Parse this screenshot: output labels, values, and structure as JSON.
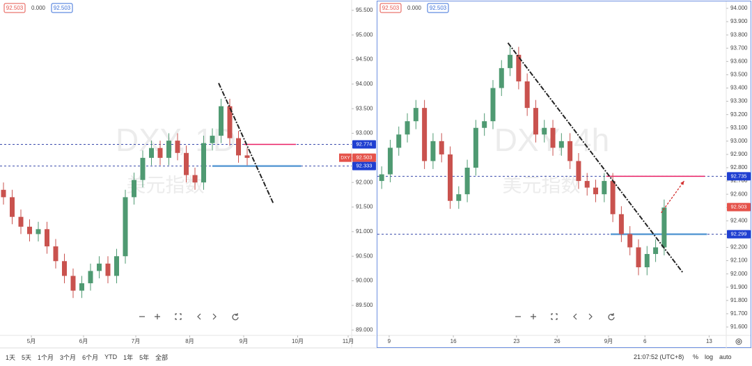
{
  "chart_data": [
    {
      "type": "candlestick",
      "header": [
        "92.503",
        "0.000",
        "92.503"
      ],
      "watermark": [
        "DXY, 1D",
        "美元指数"
      ],
      "up_color": "#4f9a72",
      "down_color": "#c9524e",
      "x": [
        2,
        7,
        12,
        17,
        22,
        27,
        32,
        37,
        42,
        47,
        52,
        57,
        62,
        67,
        72,
        77,
        82,
        87,
        92,
        97,
        102,
        107,
        112,
        117,
        122,
        127,
        132,
        137,
        142
      ],
      "open": [
        91.85,
        91.7,
        91.3,
        91.1,
        90.95,
        91.05,
        90.7,
        90.4,
        90.1,
        89.8,
        89.95,
        90.2,
        90.35,
        90.1,
        90.5,
        91.7,
        92.05,
        92.5,
        92.7,
        92.5,
        92.85,
        92.6,
        92.15,
        92.0,
        92.8,
        92.95,
        93.55,
        92.9,
        92.55
      ],
      "high": [
        92.0,
        91.85,
        91.45,
        91.25,
        91.2,
        91.2,
        90.85,
        90.55,
        90.25,
        90.1,
        90.35,
        90.5,
        90.5,
        90.65,
        91.85,
        92.2,
        92.65,
        92.85,
        92.85,
        93.0,
        93.0,
        92.75,
        92.3,
        92.95,
        93.1,
        93.7,
        93.7,
        93.05,
        92.7
      ],
      "low": [
        91.55,
        91.15,
        90.95,
        90.8,
        90.8,
        90.55,
        90.25,
        89.95,
        89.65,
        89.65,
        89.8,
        90.05,
        89.95,
        89.95,
        90.35,
        91.55,
        91.9,
        92.35,
        92.35,
        92.35,
        92.45,
        92.0,
        91.85,
        91.85,
        92.65,
        92.8,
        92.75,
        92.4,
        92.35
      ],
      "close": [
        91.7,
        91.3,
        91.1,
        90.95,
        91.05,
        90.7,
        90.4,
        90.1,
        89.8,
        89.95,
        90.2,
        90.35,
        90.1,
        90.5,
        91.7,
        92.05,
        92.5,
        92.7,
        92.5,
        92.85,
        92.6,
        92.15,
        92.0,
        92.8,
        92.95,
        93.55,
        92.9,
        92.55,
        92.5
      ],
      "xlim": [
        0,
        202
      ],
      "ylim": [
        88.89,
        95.71
      ],
      "xticks": [
        {
          "value": 18,
          "label": "5月"
        },
        {
          "value": 48,
          "label": "6月"
        },
        {
          "value": 78,
          "label": "7月"
        },
        {
          "value": 109,
          "label": "8月"
        },
        {
          "value": 140,
          "label": "9月"
        },
        {
          "value": 171,
          "label": "10月"
        },
        {
          "value": 200,
          "label": "11月"
        }
      ],
      "yticks": [
        {
          "value": 89,
          "label": "89.000"
        },
        {
          "value": 89.5,
          "label": "89.500"
        },
        {
          "value": 90,
          "label": "90.000"
        },
        {
          "value": 90.5,
          "label": "90.500"
        },
        {
          "value": 91,
          "label": "91.000"
        },
        {
          "value": 91.5,
          "label": "91.500"
        },
        {
          "value": 92,
          "label": "92.000"
        },
        {
          "value": 92.5,
          "label": "92.500"
        },
        {
          "value": 93,
          "label": "93.000"
        },
        {
          "value": 93.5,
          "label": "93.500"
        },
        {
          "value": 94,
          "label": "94.000"
        },
        {
          "value": 94.5,
          "label": "94.500"
        },
        {
          "value": 95,
          "label": "95.000"
        },
        {
          "value": 95.5,
          "label": "95.500"
        }
      ],
      "price_lines": [
        92.774,
        92.333
      ],
      "segments": [
        {
          "x": [
            140,
            170
          ],
          "y": 92.774,
          "color": "#e91e63"
        },
        {
          "x": [
            122,
            173
          ],
          "y": 92.333,
          "color": "#5b9bd5"
        }
      ],
      "trend_line": {
        "x": [
          125.6,
          157.2
        ],
        "y": [
          94.02,
          91.56
        ]
      },
      "price_tags": [
        {
          "value": 92.774,
          "color": "#1f3fd1"
        },
        {
          "value": 92.503,
          "color": "#e5534b",
          "symbol": "DXY"
        },
        {
          "value": 92.333,
          "color": "#1f3fd1"
        }
      ]
    },
    {
      "type": "candlestick",
      "header": [
        "92.503",
        "0.000",
        "92.503"
      ],
      "watermark": [
        "DXY, 4h",
        "美元指数"
      ],
      "up_color": "#4f9a72",
      "down_color": "#c9524e",
      "x": [
        2,
        6,
        10,
        14,
        18,
        22,
        26,
        30,
        34,
        38,
        42,
        46,
        50,
        54,
        58,
        62,
        66,
        70,
        74,
        78,
        82,
        86,
        90,
        94,
        98,
        102,
        106,
        110,
        114,
        118,
        122,
        126,
        130,
        134
      ],
      "open": [
        92.7,
        92.75,
        92.95,
        93.05,
        93.15,
        93.25,
        92.85,
        93.0,
        92.9,
        92.55,
        92.6,
        92.8,
        93.1,
        93.15,
        93.4,
        93.55,
        93.65,
        93.45,
        93.25,
        93.05,
        93.1,
        92.95,
        93.0,
        92.85,
        92.7,
        92.65,
        92.6,
        92.7,
        92.45,
        92.3,
        92.2,
        92.05,
        92.15,
        92.2
      ],
      "high": [
        92.81,
        93.01,
        93.11,
        93.21,
        93.31,
        93.31,
        93.06,
        93.06,
        92.96,
        92.66,
        92.86,
        93.16,
        93.21,
        93.46,
        93.61,
        93.71,
        93.71,
        93.51,
        93.31,
        93.16,
        93.16,
        93.06,
        93.06,
        92.91,
        92.76,
        92.71,
        92.76,
        92.76,
        92.51,
        92.36,
        92.26,
        92.21,
        92.26,
        92.56
      ],
      "low": [
        92.64,
        92.69,
        92.89,
        92.99,
        93.09,
        92.79,
        92.79,
        92.84,
        92.49,
        92.49,
        92.54,
        92.74,
        93.04,
        93.09,
        93.34,
        93.49,
        93.39,
        93.19,
        92.99,
        92.99,
        92.89,
        92.89,
        92.79,
        92.64,
        92.59,
        92.54,
        92.54,
        92.39,
        92.24,
        92.14,
        91.99,
        91.99,
        92.09,
        92.14
      ],
      "close": [
        92.75,
        92.95,
        93.05,
        93.15,
        93.25,
        92.85,
        93.0,
        92.9,
        92.55,
        92.6,
        92.8,
        93.1,
        93.15,
        93.4,
        93.55,
        93.65,
        93.45,
        93.25,
        93.05,
        93.1,
        92.95,
        93.0,
        92.85,
        92.7,
        92.65,
        92.6,
        92.7,
        92.45,
        92.3,
        92.2,
        92.05,
        92.15,
        92.2,
        92.5
      ],
      "xlim": [
        0,
        163
      ],
      "ylim": [
        91.537,
        94.042
      ],
      "xticks": [
        {
          "value": 5.5,
          "label": "9"
        },
        {
          "value": 35.5,
          "label": "16"
        },
        {
          "value": 65,
          "label": "23"
        },
        {
          "value": 84,
          "label": "26"
        },
        {
          "value": 108,
          "label": "9月"
        },
        {
          "value": 125,
          "label": "6"
        },
        {
          "value": 155,
          "label": "13"
        }
      ],
      "yticks": [
        {
          "value": 91.6,
          "label": "91.600"
        },
        {
          "value": 91.7,
          "label": "91.700"
        },
        {
          "value": 91.8,
          "label": "91.800"
        },
        {
          "value": 91.9,
          "label": "91.900"
        },
        {
          "value": 92,
          "label": "92.000"
        },
        {
          "value": 92.1,
          "label": "92.100"
        },
        {
          "value": 92.2,
          "label": "92.200"
        },
        {
          "value": 92.3,
          "label": "92.300"
        },
        {
          "value": 92.4,
          "label": "92.400"
        },
        {
          "value": 92.5,
          "label": "92.500"
        },
        {
          "value": 92.6,
          "label": "92.600"
        },
        {
          "value": 92.7,
          "label": "92.700"
        },
        {
          "value": 92.8,
          "label": "92.800"
        },
        {
          "value": 92.9,
          "label": "92.900"
        },
        {
          "value": 93,
          "label": "93.000"
        },
        {
          "value": 93.1,
          "label": "93.100"
        },
        {
          "value": 93.2,
          "label": "93.200"
        },
        {
          "value": 93.3,
          "label": "93.300"
        },
        {
          "value": 93.4,
          "label": "93.400"
        },
        {
          "value": 93.5,
          "label": "93.500"
        },
        {
          "value": 93.6,
          "label": "93.600"
        },
        {
          "value": 93.7,
          "label": "93.700"
        },
        {
          "value": 93.8,
          "label": "93.800"
        },
        {
          "value": 93.9,
          "label": "93.900"
        },
        {
          "value": 94,
          "label": "94.000"
        }
      ],
      "price_lines": [
        92.735,
        92.299
      ],
      "segments": [
        {
          "x": [
            107,
            153
          ],
          "y": 92.735,
          "color": "#e91e63"
        },
        {
          "x": [
            109,
            154
          ],
          "y": 92.299,
          "color": "#5b9bd5"
        }
      ],
      "trend_line": {
        "x": [
          61,
          142.7
        ],
        "y": [
          93.74,
          92.01
        ]
      },
      "arrow": {
        "x": [
          132.6,
          143.3
        ],
        "y": [
          92.46,
          92.7
        ]
      },
      "price_tags": [
        {
          "value": 92.735,
          "color": "#1f3fd1"
        },
        {
          "value": 92.503,
          "color": "#e5534b"
        },
        {
          "value": 92.299,
          "color": "#1f3fd1"
        }
      ]
    }
  ],
  "toolbar": {
    "ranges": [
      "1天",
      "5天",
      "1个月",
      "3个月",
      "6个月",
      "YTD",
      "1年",
      "5年",
      "全部"
    ],
    "time": "21:07:52 (UTC+8)",
    "options": [
      "%",
      "log",
      "auto"
    ]
  }
}
